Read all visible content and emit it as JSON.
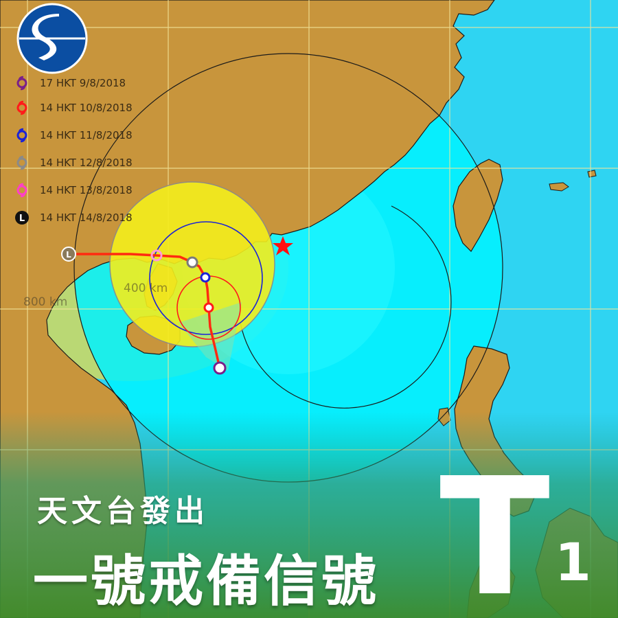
{
  "legend": {
    "items": [
      {
        "label": "17 HKT 9/8/2018",
        "color": "#7a1f8a",
        "icon": "tropical-cyclone-symbol"
      },
      {
        "label": "14 HKT 10/8/2018",
        "color": "#ff1a1a",
        "icon": "tropical-cyclone-symbol"
      },
      {
        "label": "14 HKT 11/8/2018",
        "color": "#1a22d8",
        "icon": "tropical-cyclone-symbol"
      },
      {
        "label": "14 HKT 12/8/2018",
        "color": "#8a8a8a",
        "icon": "tropical-cyclone-symbol"
      },
      {
        "label": "14 HKT 13/8/2018",
        "color": "#ff3fc8",
        "icon": "tropical-cyclone-symbol"
      },
      {
        "label": "14 HKT 14/8/2018",
        "color": "#111111",
        "icon": "low-pressure-symbol",
        "symbol": "L"
      }
    ]
  },
  "map": {
    "distance_labels": {
      "inner": "400 km",
      "outer": "800 km"
    },
    "colors": {
      "land": "#c8953c",
      "sea": "#30d0f0",
      "warning_near": "#f4ee1c",
      "warning_outer": "#e8d84a",
      "track": "#ff2a10",
      "hong_kong_marker": "#ff1010"
    }
  },
  "banner": {
    "line1": "天文台發出",
    "line2": "一號戒備信號",
    "signal_letter": "T",
    "signal_number": "1"
  }
}
